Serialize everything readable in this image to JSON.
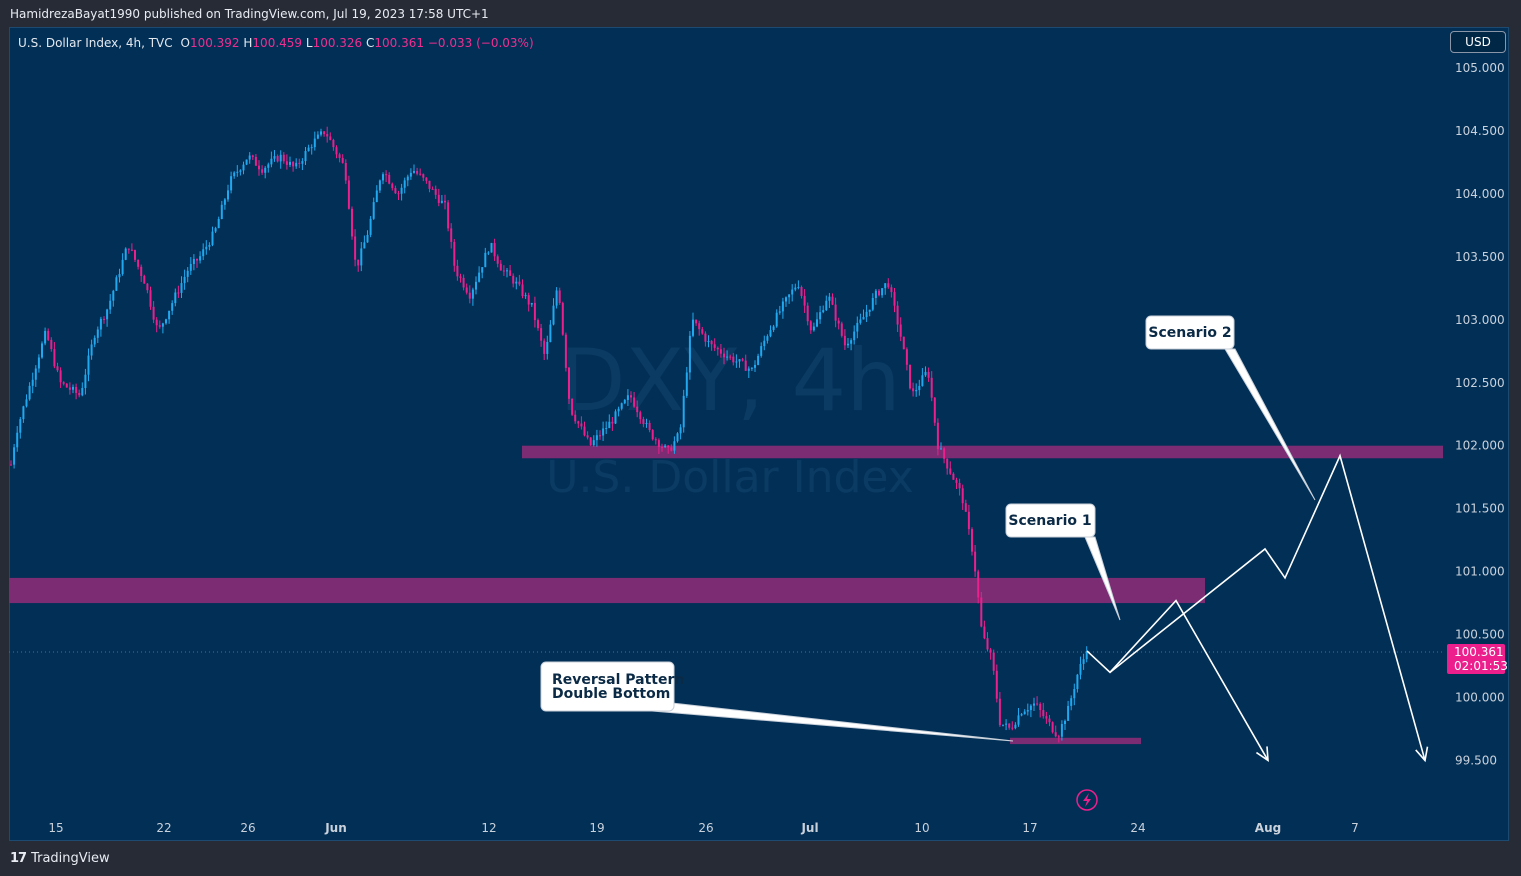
{
  "header": {
    "published_by": "HamidrezaBayat1990 published on TradingView.com, Jul 19, 2023 17:58 UTC+1"
  },
  "legend": {
    "symbol": "U.S. Dollar Index, 4h, TVC",
    "o_label": "O",
    "o_value": "100.392",
    "h_label": "H",
    "h_value": "100.459",
    "l_label": "L",
    "l_value": "100.326",
    "c_label": "C",
    "c_value": "100.361",
    "change": "−0.033 (−0.03%)"
  },
  "currency_button": "USD",
  "watermark": {
    "ticker": "DXY, 4h",
    "name": "U.S. Dollar Index"
  },
  "price_label": {
    "price": "100.361",
    "countdown": "02:01:53"
  },
  "footer": {
    "brand_mark": "17",
    "brand": "TradingView"
  },
  "colors": {
    "background": "#022f56",
    "up": "#21a8ee",
    "down": "#ec1f8c",
    "zone": "#7b2c72",
    "arrow": "#ffffff"
  },
  "icons": [
    "lightning-icon",
    "tradingview-logo-icon"
  ],
  "chart_data": {
    "type": "candlestick",
    "title": "",
    "y_axis": {
      "labels": [
        "105.000",
        "104.500",
        "104.000",
        "103.500",
        "103.000",
        "102.500",
        "102.000",
        "101.500",
        "101.000",
        "100.500",
        "100.000",
        "99.500"
      ],
      "min": 99.1,
      "max": 105.2,
      "side": "right"
    },
    "x_axis": {
      "labels": [
        "15",
        "22",
        "26",
        "Jun",
        "12",
        "19",
        "26",
        "Jul",
        "10",
        "17",
        "24",
        "Aug",
        "7"
      ]
    },
    "grid": false,
    "price_path": [
      [
        0,
        101.3
      ],
      [
        16,
        102.1
      ],
      [
        38,
        102.7
      ],
      [
        46,
        102.9
      ],
      [
        60,
        102.5
      ],
      [
        80,
        102.4
      ],
      [
        95,
        102.9
      ],
      [
        108,
        103.1
      ],
      [
        128,
        103.6
      ],
      [
        145,
        103.3
      ],
      [
        158,
        102.9
      ],
      [
        170,
        103.1
      ],
      [
        188,
        103.4
      ],
      [
        200,
        103.5
      ],
      [
        215,
        103.7
      ],
      [
        230,
        104.1
      ],
      [
        248,
        104.3
      ],
      [
        262,
        104.2
      ],
      [
        280,
        104.3
      ],
      [
        295,
        104.2
      ],
      [
        312,
        104.4
      ],
      [
        325,
        104.5
      ],
      [
        345,
        104.2
      ],
      [
        356,
        103.4
      ],
      [
        368,
        103.7
      ],
      [
        382,
        104.2
      ],
      [
        398,
        104.0
      ],
      [
        412,
        104.2
      ],
      [
        425,
        104.1
      ],
      [
        445,
        103.9
      ],
      [
        455,
        103.4
      ],
      [
        470,
        103.2
      ],
      [
        490,
        103.6
      ],
      [
        502,
        103.4
      ],
      [
        515,
        103.3
      ],
      [
        532,
        103.1
      ],
      [
        545,
        102.7
      ],
      [
        558,
        103.3
      ],
      [
        570,
        102.3
      ],
      [
        590,
        102.0
      ],
      [
        612,
        102.2
      ],
      [
        630,
        102.4
      ],
      [
        650,
        102.1
      ],
      [
        668,
        101.95
      ],
      [
        680,
        102.1
      ],
      [
        692,
        103.0
      ],
      [
        710,
        102.8
      ],
      [
        730,
        102.7
      ],
      [
        752,
        102.6
      ],
      [
        768,
        102.9
      ],
      [
        782,
        103.1
      ],
      [
        798,
        103.3
      ],
      [
        812,
        102.9
      ],
      [
        828,
        103.2
      ],
      [
        845,
        102.8
      ],
      [
        862,
        103.0
      ],
      [
        876,
        103.2
      ],
      [
        888,
        103.3
      ],
      [
        900,
        102.9
      ],
      [
        912,
        102.4
      ],
      [
        928,
        102.6
      ],
      [
        938,
        102.0
      ],
      [
        950,
        101.8
      ],
      [
        962,
        101.6
      ],
      [
        974,
        101.1
      ],
      [
        982,
        100.5
      ],
      [
        992,
        100.3
      ],
      [
        1000,
        99.8
      ],
      [
        1010,
        99.75
      ],
      [
        1022,
        99.9
      ],
      [
        1035,
        99.95
      ],
      [
        1048,
        99.8
      ],
      [
        1058,
        99.7
      ],
      [
        1068,
        99.9
      ],
      [
        1078,
        100.2
      ],
      [
        1087,
        100.37
      ]
    ],
    "zones": [
      {
        "name": "resistance-zone-upper",
        "x0": 522,
        "x1": 1443,
        "low": 101.9,
        "high": 102.0
      },
      {
        "name": "resistance-zone-lower",
        "x0": 9,
        "x1": 1205,
        "low": 100.75,
        "high": 100.95
      },
      {
        "name": "double-bottom-zone",
        "x0": 1010,
        "x1": 1141,
        "low": 99.63,
        "high": 99.68
      }
    ],
    "last_price": 100.361,
    "annotations": [
      {
        "text": "Scenario 2"
      },
      {
        "text": "Scenario 1"
      },
      {
        "line1": "Reversal Pattern",
        "line2": "Double Bottom"
      }
    ],
    "scenario_paths": [
      {
        "name": "scenario-1-path",
        "points": [
          [
            1087,
            100.37
          ],
          [
            1110,
            100.2
          ],
          [
            1176,
            100.77
          ],
          [
            1268,
            99.5
          ]
        ]
      },
      {
        "name": "scenario-2-path",
        "points": [
          [
            1110,
            100.2
          ],
          [
            1265,
            101.18
          ],
          [
            1285,
            100.95
          ],
          [
            1340,
            101.92
          ],
          [
            1425,
            99.5
          ]
        ]
      }
    ]
  }
}
